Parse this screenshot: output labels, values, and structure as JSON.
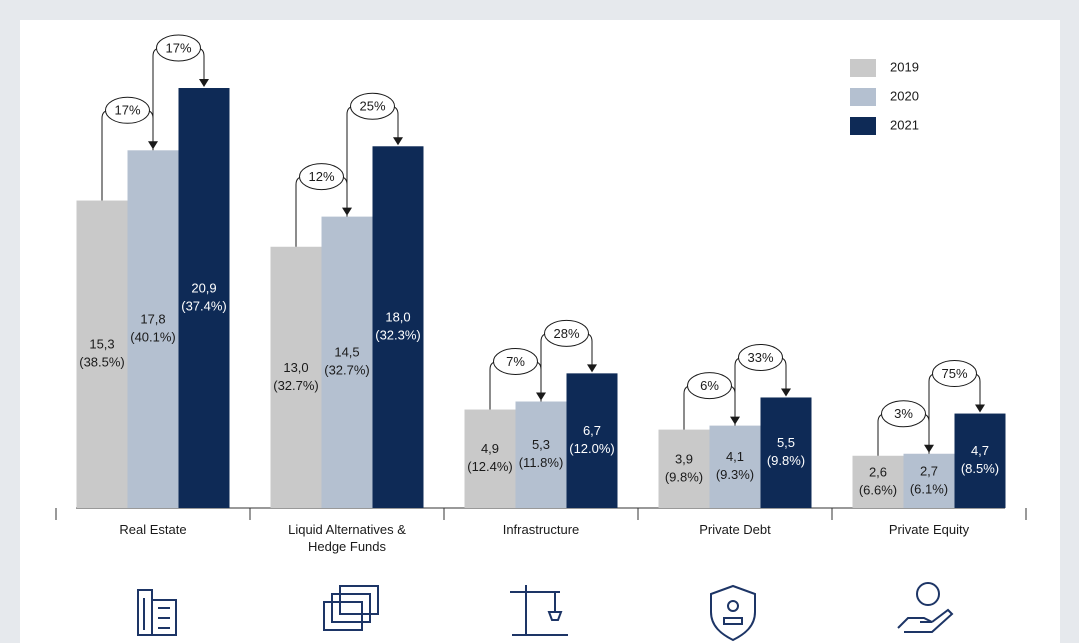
{
  "chart_data": {
    "type": "bar",
    "categories": [
      "Real Estate",
      "Liquid Alternatives & Hedge Funds",
      "Infrastructure",
      "Private Debt",
      "Private Equity"
    ],
    "series": [
      {
        "name": "2019",
        "color": "#c9c9c9",
        "values": [
          15.3,
          13.0,
          4.9,
          3.9,
          2.6
        ],
        "value_labels": [
          "15,3",
          "13,0",
          "4,9",
          "3,9",
          "2,6"
        ],
        "share_labels": [
          "(38.5%)",
          "(32.7%)",
          "(12.4%)",
          "(9.8%)",
          "(6.6%)"
        ]
      },
      {
        "name": "2020",
        "color": "#b4c0d0",
        "values": [
          17.8,
          14.5,
          5.3,
          4.1,
          2.7
        ],
        "value_labels": [
          "17,8",
          "14,5",
          "5,3",
          "4,1",
          "2,7"
        ],
        "share_labels": [
          "(40.1%)",
          "(32.7%)",
          "(11.8%)",
          "(9.3%)",
          "(6.1%)"
        ]
      },
      {
        "name": "2021",
        "color": "#0e2a56",
        "values": [
          20.9,
          18.0,
          6.7,
          5.5,
          4.7
        ],
        "value_labels": [
          "20,9",
          "18,0",
          "6,7",
          "5,5",
          "4,7"
        ],
        "share_labels": [
          "(37.4%)",
          "(32.3%)",
          "(12.0%)",
          "(9.8%)",
          "(8.5%)"
        ]
      }
    ],
    "annotations": [
      {
        "values": [
          17,
          12,
          7,
          6,
          3
        ],
        "value_labels": [
          "17%",
          "12%",
          "7%",
          "6%",
          "3%"
        ]
      },
      {
        "values": [
          17,
          25,
          28,
          33,
          75
        ],
        "value_labels": [
          "17%",
          "25%",
          "28%",
          "33%",
          "75%"
        ]
      }
    ],
    "ylim": [
      0,
      21
    ],
    "legend": "top-right"
  }
}
